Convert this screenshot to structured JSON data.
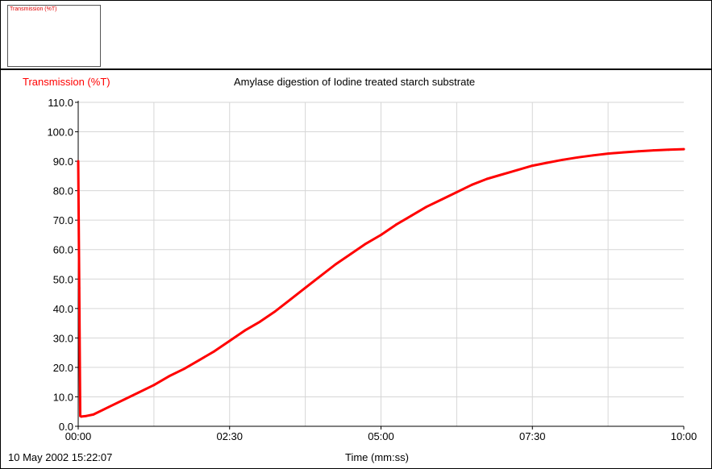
{
  "mini_panel": {
    "label": "Transmission (%T)"
  },
  "date_stamp": "10 May 2002  15:22:07",
  "chart_data": {
    "type": "line",
    "title": "Amylase digestion of Iodine treated starch substrate",
    "ylabel": "Transmission (%T)",
    "xlabel": "Time (mm:ss)",
    "xlim": [
      0,
      600
    ],
    "ylim": [
      0,
      110
    ],
    "x_tick_values": [
      0,
      150,
      300,
      450,
      600
    ],
    "x_tick_labels": [
      "00:00",
      "02:30",
      "05:00",
      "07:30",
      "10:00"
    ],
    "y_tick_labels": [
      "0.0",
      "10.0",
      "20.0",
      "30.0",
      "40.0",
      "50.0",
      "60.0",
      "70.0",
      "80.0",
      "90.0",
      "100.0",
      "110.0"
    ],
    "grid": true,
    "series_color": "#ff0000",
    "series": [
      {
        "x": [
          0,
          1,
          2,
          3,
          8,
          15,
          30,
          45,
          60,
          75,
          90,
          105,
          120,
          135,
          150,
          165,
          180,
          195,
          210,
          225,
          240,
          255,
          270,
          285,
          300,
          315,
          330,
          345,
          360,
          375,
          390,
          405,
          420,
          435,
          450,
          465,
          480,
          495,
          510,
          525,
          540,
          555,
          570,
          585,
          600
        ],
        "y": [
          90.0,
          47.0,
          3.5,
          3.3,
          3.5,
          4.0,
          6.5,
          9.0,
          11.5,
          14.0,
          17.0,
          19.5,
          22.5,
          25.5,
          29.0,
          32.5,
          35.5,
          39.0,
          43.0,
          47.0,
          51.0,
          55.0,
          58.5,
          62.0,
          65.0,
          68.5,
          71.5,
          74.5,
          77.0,
          79.5,
          82.0,
          84.0,
          85.5,
          87.0,
          88.5,
          89.5,
          90.5,
          91.3,
          92.0,
          92.6,
          93.0,
          93.4,
          93.7,
          93.9,
          94.1
        ]
      }
    ]
  }
}
